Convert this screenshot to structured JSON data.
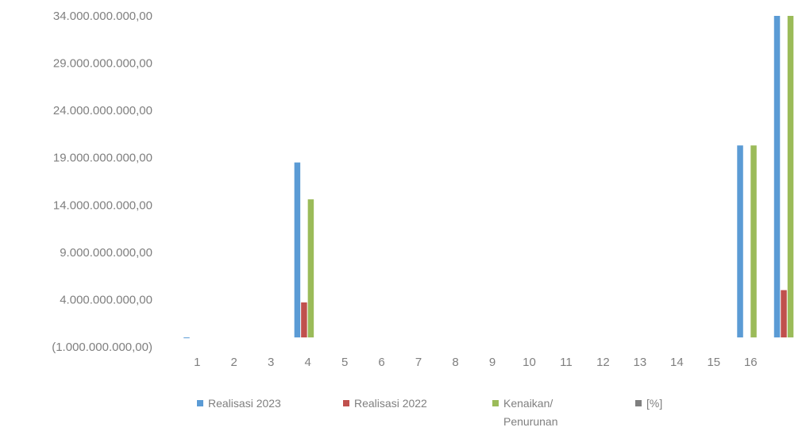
{
  "chart_data": {
    "type": "bar",
    "title": "",
    "xlabel": "",
    "ylabel": "",
    "categories": [
      "1",
      "2",
      "3",
      "4",
      "5",
      "6",
      "7",
      "8",
      "9",
      "10",
      "11",
      "12",
      "13",
      "14",
      "15",
      "16",
      ""
    ],
    "ylim": [
      -1000000000,
      34000000000
    ],
    "y_ticks": [
      -1000000000,
      4000000000,
      9000000000,
      14000000000,
      19000000000,
      24000000000,
      29000000000,
      34000000000
    ],
    "y_tick_labels": [
      "(1.000.000.000,00)",
      "4.000.000.000,00",
      "9.000.000.000,00",
      "14.000.000.000,00",
      "19.000.000.000,00",
      "24.000.000.000,00",
      "29.000.000.000,00",
      "34.000.000.000,00"
    ],
    "grid": false,
    "legend_position": "bottom",
    "series": [
      {
        "name": "Realisasi 2023",
        "color": "#5b9bd5",
        "values": [
          -50000000,
          0,
          0,
          18500000000,
          0,
          0,
          0,
          0,
          0,
          0,
          0,
          0,
          0,
          0,
          0,
          20300000000,
          34000000000
        ]
      },
      {
        "name": "Realisasi 2022",
        "color": "#c0504d",
        "values": [
          0,
          0,
          0,
          3700000000,
          0,
          0,
          0,
          0,
          0,
          0,
          0,
          0,
          0,
          0,
          0,
          0,
          5000000000
        ]
      },
      {
        "name": "Kenaikan/ Penurunan",
        "label_lines": [
          "Kenaikan/",
          "Penurunan"
        ],
        "color": "#9bbb59",
        "values": [
          0,
          0,
          0,
          14600000000,
          0,
          0,
          0,
          0,
          0,
          0,
          0,
          0,
          0,
          0,
          0,
          20300000000,
          34000000000
        ]
      },
      {
        "name": "[%]",
        "color": "#7f7f7f",
        "values": [
          0,
          0,
          0,
          0,
          0,
          0,
          0,
          0,
          0,
          0,
          0,
          0,
          0,
          0,
          0,
          0,
          0
        ]
      }
    ]
  }
}
